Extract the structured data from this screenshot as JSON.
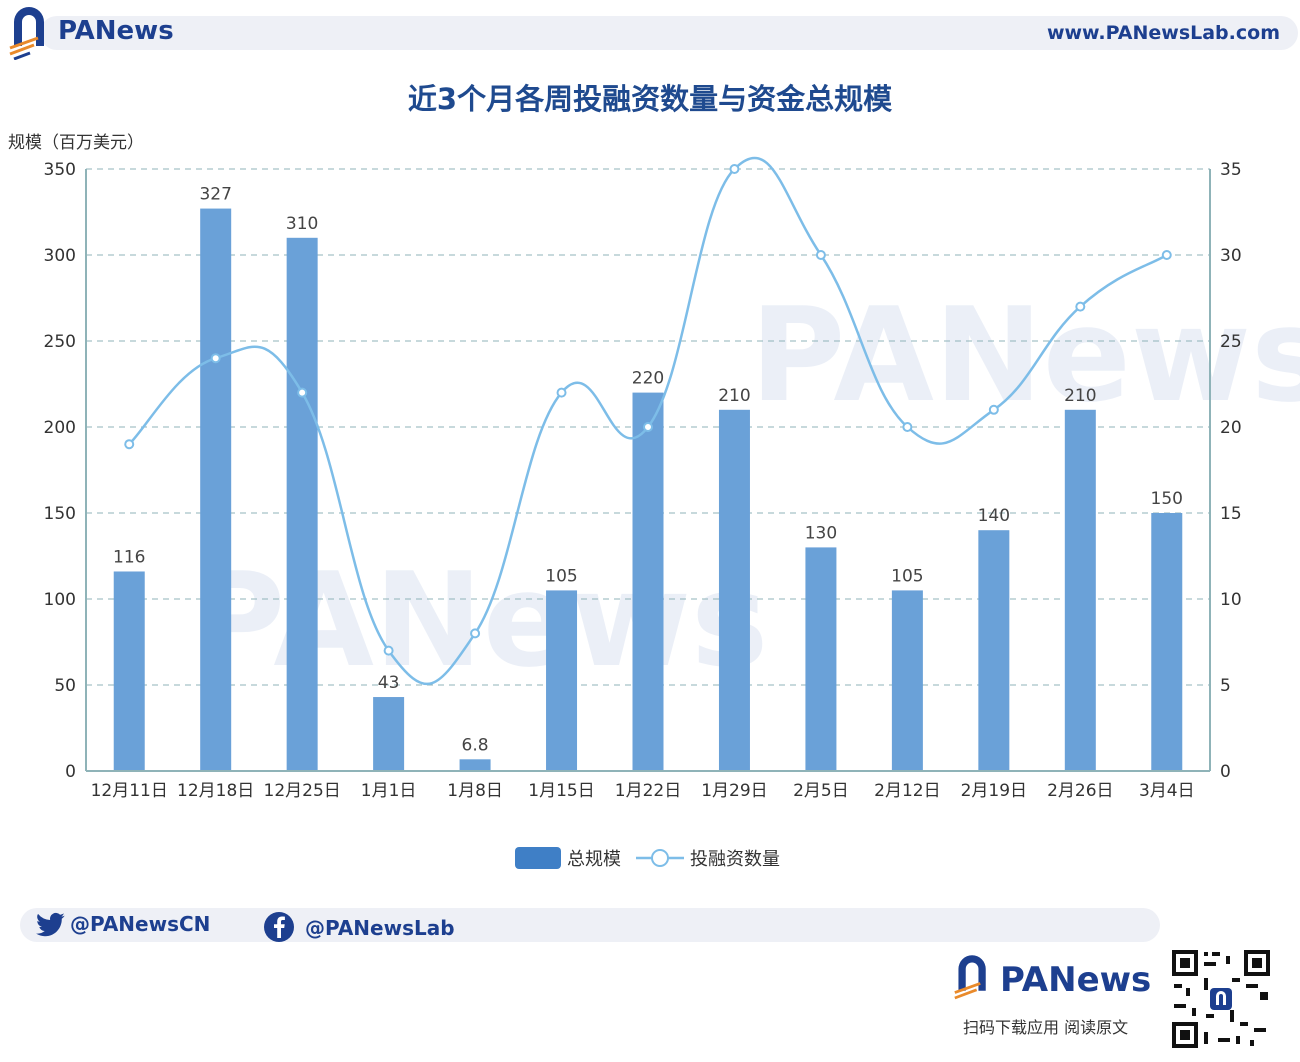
{
  "header": {
    "brand_name": "PANews",
    "website": "www.PANewsLab.com"
  },
  "watermark": "PANews",
  "footer": {
    "twitter": "@PANewsCN",
    "facebook": "@PANewsLab",
    "brand_name": "PANews",
    "caption": "扫码下载应用  阅读原文"
  },
  "colors": {
    "bar": "#6aa1d8",
    "line": "#7dbde8",
    "title": "#1f4a8f",
    "brand": "#1d3f8f",
    "accent": "#e98a2b"
  },
  "chart_data": {
    "type": "bar",
    "title": "近3个月各周投融资数量与资金总规模",
    "ylabel": "规模（百万美元）",
    "y2label": "",
    "categories": [
      "12月11日",
      "12月18日",
      "12月25日",
      "1月1日",
      "1月8日",
      "1月15日",
      "1月22日",
      "1月29日",
      "2月5日",
      "2月12日",
      "2月19日",
      "2月26日",
      "3月4日"
    ],
    "ylim": [
      0,
      350
    ],
    "y2lim": [
      0,
      35
    ],
    "yticks": [
      0,
      50,
      100,
      150,
      200,
      250,
      300,
      350
    ],
    "y2ticks": [
      0,
      5,
      10,
      15,
      20,
      25,
      30,
      35
    ],
    "series": [
      {
        "name": "总规模",
        "type": "bar",
        "axis": "left",
        "values": [
          116,
          327,
          310,
          43,
          6.8,
          105,
          220,
          210,
          130,
          105,
          140,
          210,
          150
        ],
        "labels": [
          "116",
          "327",
          "310",
          "43",
          "6.8",
          "105",
          "220",
          "210",
          "130",
          "105",
          "140",
          "210",
          "150"
        ]
      },
      {
        "name": "投融资数量",
        "type": "line",
        "axis": "right",
        "smooth": true,
        "values": [
          19,
          24,
          22,
          7,
          8,
          22,
          20,
          35,
          30,
          20,
          21,
          27,
          30
        ]
      }
    ],
    "legend": "bottom-center",
    "grid": true
  }
}
